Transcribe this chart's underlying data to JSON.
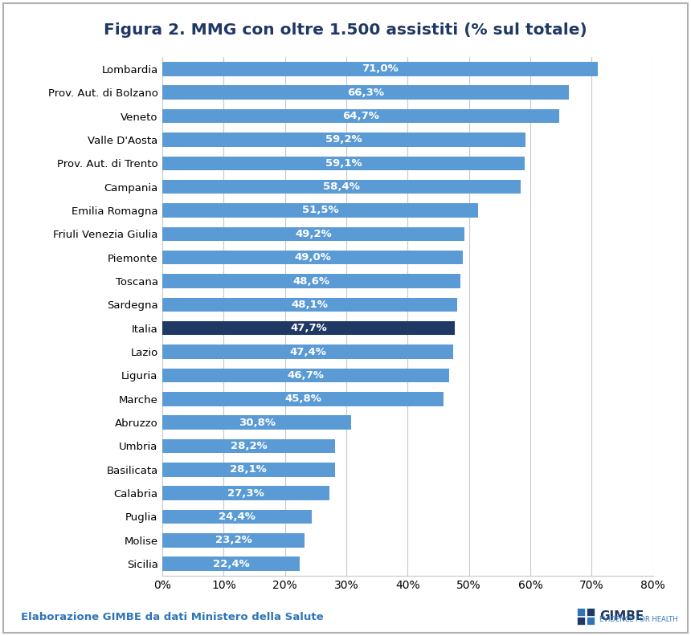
{
  "title": "Figura 2. MMG con oltre 1.500 assistiti (% sul totale)",
  "categories": [
    "Lombardia",
    "Prov. Aut. di Bolzano",
    "Veneto",
    "Valle D'Aosta",
    "Prov. Aut. di Trento",
    "Campania",
    "Emilia Romagna",
    "Friuli Venezia Giulia",
    "Piemonte",
    "Toscana",
    "Sardegna",
    "Italia",
    "Lazio",
    "Liguria",
    "Marche",
    "Abruzzo",
    "Umbria",
    "Basilicata",
    "Calabria",
    "Puglia",
    "Molise",
    "Sicilia"
  ],
  "values": [
    71.0,
    66.3,
    64.7,
    59.2,
    59.1,
    58.4,
    51.5,
    49.2,
    49.0,
    48.6,
    48.1,
    47.7,
    47.4,
    46.7,
    45.8,
    30.8,
    28.2,
    28.1,
    27.3,
    24.4,
    23.2,
    22.4
  ],
  "bar_color_normal": "#5b9bd5",
  "bar_color_italia": "#1f3864",
  "label_color": "#ffffff",
  "title_color": "#1f3864",
  "footnote_color": "#2e75b6",
  "footnote_text": "Elaborazione GIMBE da dati Ministero della Salute",
  "xlim": [
    0,
    80
  ],
  "xtick_values": [
    0,
    10,
    20,
    30,
    40,
    50,
    60,
    70,
    80
  ],
  "background_color": "#ffffff",
  "chart_bg_color": "#ffffff",
  "grid_color": "#c8c8c8",
  "title_fontsize": 14.5,
  "label_fontsize": 9.5,
  "tick_fontsize": 10,
  "footnote_fontsize": 9.5,
  "bar_height": 0.6
}
